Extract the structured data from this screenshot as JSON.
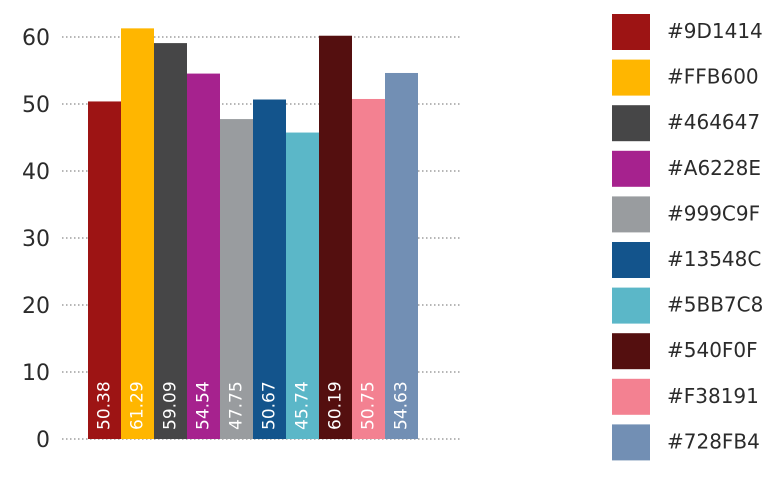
{
  "chart_data": {
    "type": "bar",
    "categories": [
      "#9D1414",
      "#FFB600",
      "#464647",
      "#A6228E",
      "#999C9F",
      "#13548C",
      "#5BB7C8",
      "#540F0F",
      "#F38191",
      "#728FB4"
    ],
    "values": [
      50.38,
      61.29,
      59.09,
      54.54,
      47.75,
      50.67,
      45.74,
      60.19,
      50.75,
      54.63
    ],
    "value_labels": [
      "50.38",
      "61.29",
      "59.09",
      "54.54",
      "47.75",
      "50.67",
      "45.74",
      "60.19",
      "50.75",
      "54.63"
    ],
    "colors": [
      "#9D1414",
      "#FFB600",
      "#464647",
      "#A6228E",
      "#999C9F",
      "#13548C",
      "#5BB7C8",
      "#540F0F",
      "#F38191",
      "#728FB4"
    ],
    "ylim": [
      0,
      60
    ],
    "y_ticks": [
      "0",
      "10",
      "20",
      "30",
      "40",
      "50",
      "60"
    ],
    "grid": true,
    "grid_style": "dotted",
    "legend_position": "right",
    "legend": [
      {
        "label": "#9D1414",
        "color": "#9D1414"
      },
      {
        "label": "#FFB600",
        "color": "#FFB600"
      },
      {
        "label": "#464647",
        "color": "#464647"
      },
      {
        "label": "#A6228E",
        "color": "#A6228E"
      },
      {
        "label": "#999C9F",
        "color": "#999C9F"
      },
      {
        "label": "#13548C",
        "color": "#13548C"
      },
      {
        "label": "#5BB7C8",
        "color": "#5BB7C8"
      },
      {
        "label": "#540F0F",
        "color": "#540F0F"
      },
      {
        "label": "#F38191",
        "color": "#F38191"
      },
      {
        "label": "#728FB4",
        "color": "#728FB4"
      }
    ],
    "title": "",
    "xlabel": "",
    "ylabel": ""
  }
}
